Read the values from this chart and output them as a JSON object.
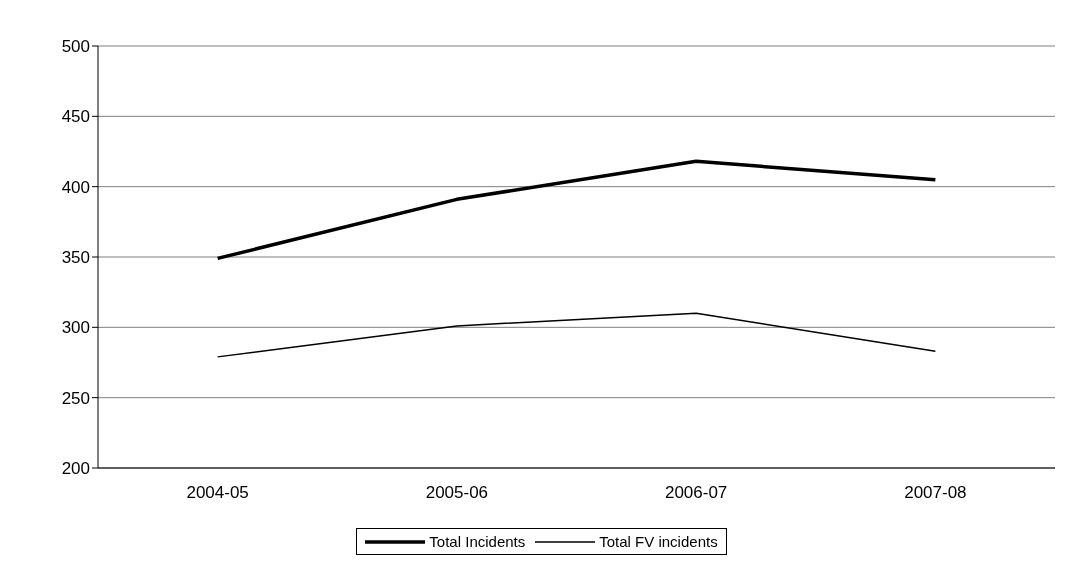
{
  "chart_data": {
    "type": "line",
    "categories": [
      "2004-05",
      "2005-06",
      "2006-07",
      "2007-08"
    ],
    "series": [
      {
        "name": "Total Incidents",
        "color": "#000000",
        "values": [
          349,
          391,
          418,
          405
        ]
      },
      {
        "name": "Total FV incidents",
        "color": "#000000",
        "values": [
          279,
          301,
          310,
          283
        ]
      }
    ],
    "ylim": [
      200,
      500
    ],
    "yticks": [
      200,
      250,
      300,
      350,
      400,
      450,
      500
    ],
    "grid": "y",
    "legend": "bottom",
    "marker": "none"
  }
}
